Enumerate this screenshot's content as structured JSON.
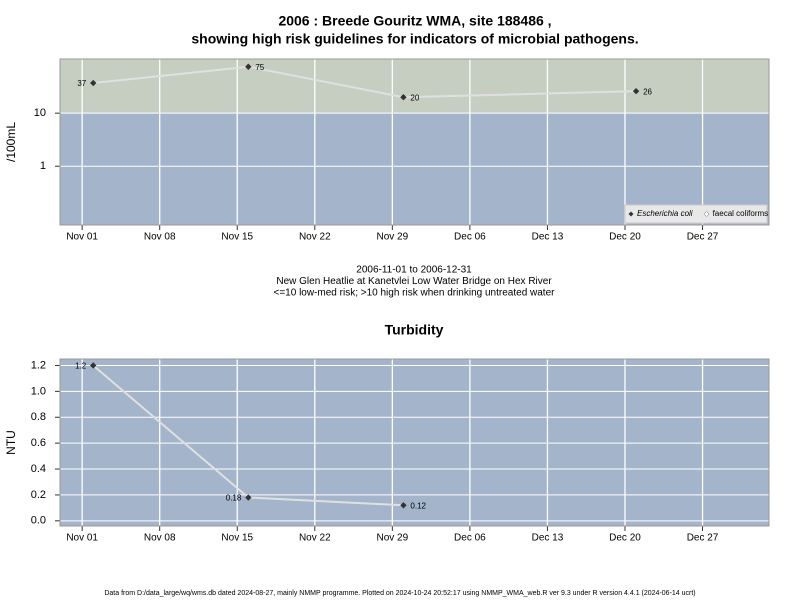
{
  "chart_data": [
    {
      "type": "line",
      "title": [
        "2006 : Breede Gouritz WMA, site 188486 ,",
        "showing high risk guidelines for indicators of microbial pathogens."
      ],
      "subtitle": [
        "2006-11-01 to 2006-12-31",
        "New Glen Heatlie at Kanetvlei Low Water Bridge on Hex River",
        "<=10 low-med risk; >10 high risk when drinking untreated water"
      ],
      "y_label": "/100mL",
      "x": [
        "2006-11-02",
        "2006-11-16",
        "2006-11-30",
        "2006-12-21"
      ],
      "series": [
        {
          "name": "Escherichia coli",
          "color": "#333333",
          "values": [
            37,
            75,
            20,
            26
          ]
        },
        {
          "name": "faecal coliforms",
          "color": "#ffffff",
          "values": [
            null,
            null,
            null,
            null
          ]
        }
      ],
      "log_scale": true,
      "risk_threshold": 10,
      "high_risk_color": "#c5cec0",
      "low_risk_color": "#a3b4cb",
      "ylim": [
        0.078,
        105
      ],
      "yticks": [
        1,
        10
      ],
      "xlim": [
        "2006-10-30",
        "2007-01-02"
      ],
      "xticks": [
        {
          "value": "2006-11-01",
          "label": "Nov 01"
        },
        {
          "value": "2006-11-08",
          "label": "Nov 08"
        },
        {
          "value": "2006-11-15",
          "label": "Nov 15"
        },
        {
          "value": "2006-11-22",
          "label": "Nov 22"
        },
        {
          "value": "2006-11-29",
          "label": "Nov 29"
        },
        {
          "value": "2006-12-06",
          "label": "Dec 06"
        },
        {
          "value": "2006-12-13",
          "label": "Dec 13"
        },
        {
          "value": "2006-12-20",
          "label": "Dec 20"
        },
        {
          "value": "2006-12-27",
          "label": "Dec 27"
        }
      ],
      "grid": true,
      "legend": "lower right"
    },
    {
      "type": "line",
      "title": "Turbidity",
      "y_label": "NTU",
      "x": [
        "2006-11-02",
        "2006-11-16",
        "2006-11-30"
      ],
      "series": [
        {
          "name": "Turbidity",
          "color": "#333333",
          "values": [
            1.2,
            0.18,
            0.12
          ]
        }
      ],
      "log_scale": false,
      "background_color": "#a3b4cb",
      "ylim": [
        -0.04,
        1.25
      ],
      "yticks": [
        {
          "value": 0,
          "label": "0.0"
        },
        0.2,
        0.4,
        0.6,
        0.8,
        {
          "value": 1,
          "label": "1.0"
        },
        1.2
      ],
      "xlim": [
        "2006-10-30",
        "2007-01-02"
      ],
      "xticks": [
        {
          "value": "2006-11-01",
          "label": "Nov 01"
        },
        {
          "value": "2006-11-08",
          "label": "Nov 08"
        },
        {
          "value": "2006-11-15",
          "label": "Nov 15"
        },
        {
          "value": "2006-11-22",
          "label": "Nov 22"
        },
        {
          "value": "2006-11-29",
          "label": "Nov 29"
        },
        {
          "value": "2006-12-06",
          "label": "Dec 06"
        },
        {
          "value": "2006-12-13",
          "label": "Dec 13"
        },
        {
          "value": "2006-12-20",
          "label": "Dec 20"
        },
        {
          "value": "2006-12-27",
          "label": "Dec 27"
        }
      ],
      "grid": true
    }
  ],
  "footer": "Data from D:/data_large/wq/wms.db dated 2024-08-27, mainly NMMP programme. Plotted on 2024-10-24 20:52:17 using NMMP_WMA_web.R ver 9.3 under R version 4.4.1 (2024-06-14 ucrt)"
}
